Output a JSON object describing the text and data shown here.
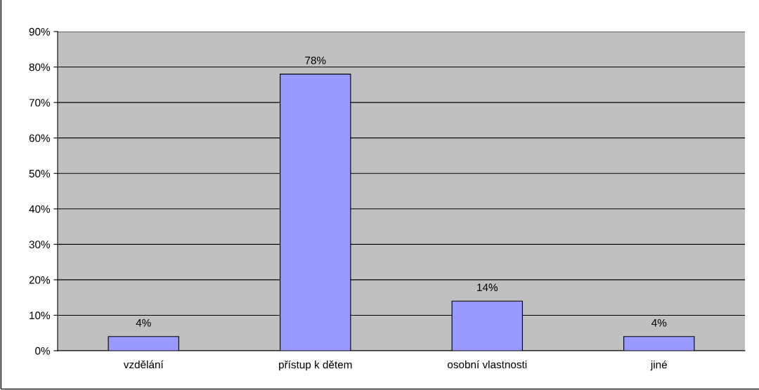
{
  "chart_data": {
    "type": "bar",
    "categories": [
      "vzdělání",
      "přístup k dětem",
      "osobní vlastnosti",
      "jiné"
    ],
    "values": [
      4,
      78,
      14,
      4
    ],
    "value_labels": [
      "4%",
      "78%",
      "14%",
      "4%"
    ],
    "color": "#9999ff",
    "ylim": [
      0,
      90
    ],
    "yticks": [
      {
        "value": 0,
        "label": "0%"
      },
      {
        "value": 10,
        "label": "10%"
      },
      {
        "value": 20,
        "label": "20%"
      },
      {
        "value": 30,
        "label": "30%"
      },
      {
        "value": 40,
        "label": "40%"
      },
      {
        "value": 50,
        "label": "50%"
      },
      {
        "value": 60,
        "label": "60%"
      },
      {
        "value": 70,
        "label": "70%"
      },
      {
        "value": 80,
        "label": "80%"
      },
      {
        "value": 90,
        "label": "90%"
      }
    ],
    "grid": "y",
    "legend": false
  }
}
